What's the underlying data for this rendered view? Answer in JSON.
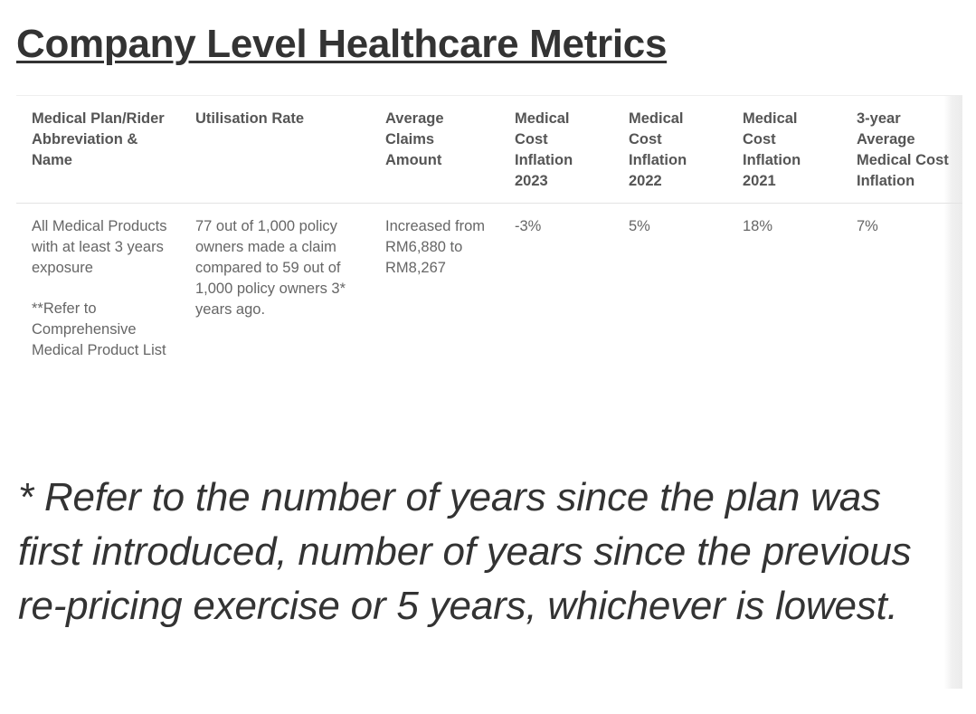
{
  "page_title": "Company Level Healthcare Metrics",
  "table": {
    "headers": [
      "Medical Plan/Rider Abbreviation & Name",
      "Utilisation Rate",
      "Average Claims Amount",
      "Medical Cost Inflation 2023",
      "Medical Cost Inflation 2022",
      "Medical Cost Inflation 2021",
      "3-year Average Medical Cost Inflation"
    ],
    "rows": [
      {
        "plan_name": "All Medical Products with at least 3 years exposure",
        "plan_note": "**Refer to Comprehensive Medical Product List",
        "utilisation_rate": "77 out of 1,000 policy owners made a claim compared to 59 out of 1,000 policy owners 3* years ago.",
        "average_claims_amount": "Increased from RM6,880 to RM8,267",
        "inflation_2023": "-3%",
        "inflation_2022": "5%",
        "inflation_2021": "18%",
        "inflation_3yr_avg": "7%"
      }
    ]
  },
  "footnote": " * Refer to the number of years since the plan was first introduced, number of years since the previous re-pricing exercise or 5 years, whichever is lowest."
}
